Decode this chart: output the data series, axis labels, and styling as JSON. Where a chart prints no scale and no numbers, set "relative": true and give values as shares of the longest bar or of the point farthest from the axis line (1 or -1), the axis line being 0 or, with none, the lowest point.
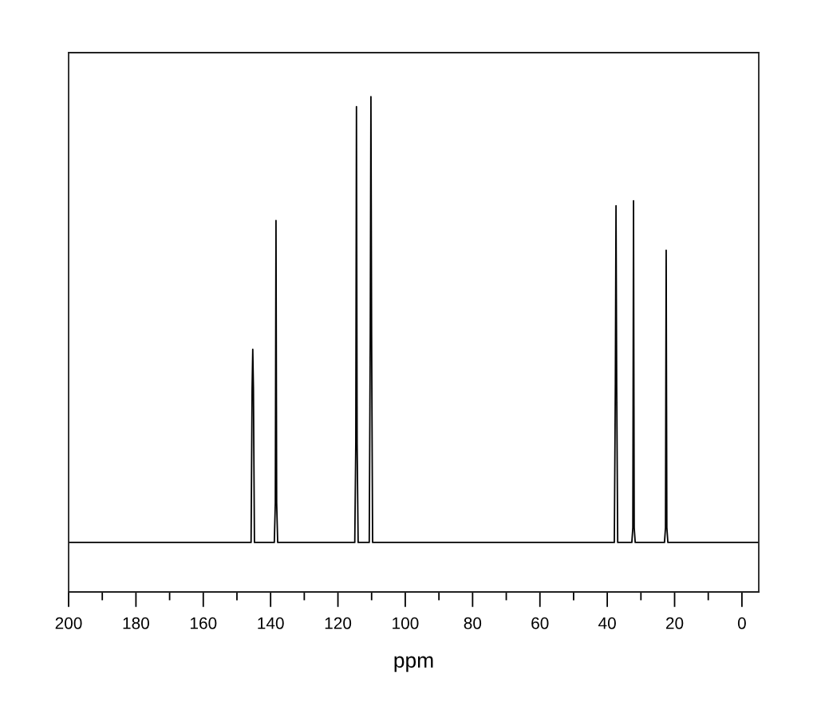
{
  "chart_data": {
    "type": "line",
    "relative": true,
    "xlabel": "ppm",
    "xlim": [
      200,
      -5
    ],
    "xticks": [
      200,
      {
        "value": 190,
        "label": null
      },
      180,
      {
        "value": 170,
        "label": null
      },
      160,
      {
        "value": 150,
        "label": null
      },
      140,
      {
        "value": 130,
        "label": null
      },
      120,
      {
        "value": 110,
        "label": null
      },
      100,
      {
        "value": 90,
        "label": null
      },
      80,
      {
        "value": 70,
        "label": null
      },
      60,
      {
        "value": 50,
        "label": null
      },
      40,
      {
        "value": 30,
        "label": null
      },
      20,
      {
        "value": 10,
        "label": null
      },
      0
    ],
    "tick_labels": "x",
    "line_style": "solid",
    "marker": "none",
    "series": [
      {
        "color": "#000000",
        "x": [
          200,
          145.8,
          145.5,
          145.3,
          145.1,
          144.8,
          138.9,
          138.6,
          138.4,
          138.2,
          137.9,
          115.0,
          114.7,
          114.5,
          114.3,
          114.0,
          110.7,
          110.4,
          110.2,
          110.0,
          109.7,
          37.9,
          37.6,
          37.4,
          37.2,
          36.9,
          32.7,
          32.4,
          32.2,
          32.0,
          31.7,
          23.0,
          22.7,
          22.5,
          22.3,
          22.0,
          -5
        ],
        "values": [
          0.1,
          0.1,
          0.41,
          0.49,
          0.41,
          0.1,
          0.1,
          0.18,
          0.75,
          0.18,
          0.1,
          0.1,
          0.3,
          0.98,
          0.3,
          0.1,
          0.1,
          0.52,
          1.0,
          0.52,
          0.1,
          0.1,
          0.42,
          0.78,
          0.42,
          0.1,
          0.1,
          0.13,
          0.79,
          0.13,
          0.1,
          0.1,
          0.13,
          0.69,
          0.13,
          0.1,
          0.1
        ]
      }
    ]
  }
}
